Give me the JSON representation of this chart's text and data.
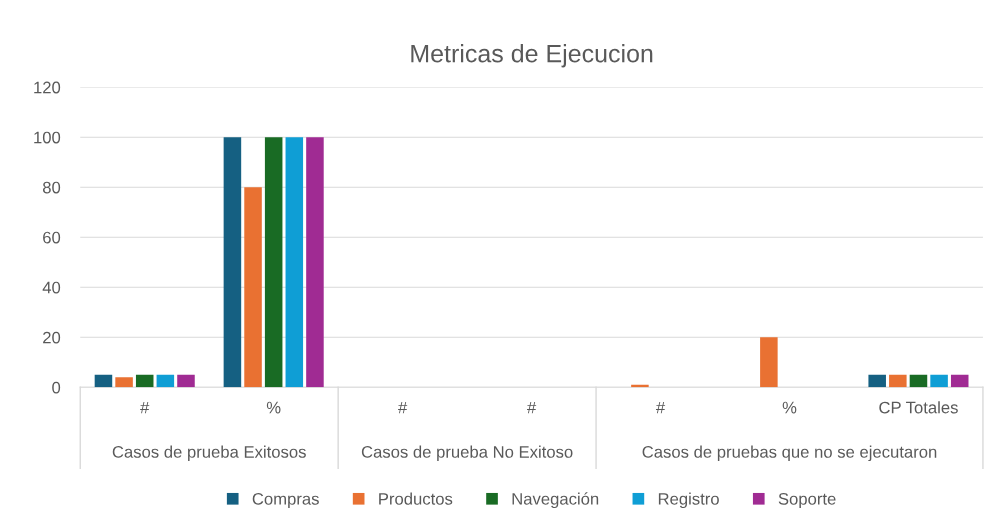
{
  "chart_data": {
    "type": "bar",
    "title": "Metricas de Ejecucion",
    "categories": [
      "#",
      "%",
      "#",
      "#",
      "#",
      "%",
      "CP Totales"
    ],
    "series": [
      {
        "name": "Compras",
        "color": "#156082",
        "values": [
          5,
          100,
          0,
          0,
          0,
          0,
          5
        ]
      },
      {
        "name": "Productos",
        "color": "#e97132",
        "values": [
          4,
          80,
          0,
          0,
          1,
          20,
          5
        ]
      },
      {
        "name": "Navegación",
        "color": "#196b24",
        "values": [
          5,
          100,
          0,
          0,
          0,
          0,
          5
        ]
      },
      {
        "name": "Registro",
        "color": "#0f9ed5",
        "values": [
          5,
          100,
          0,
          0,
          0,
          0,
          5
        ]
      },
      {
        "name": "Soporte",
        "color": "#a02b93",
        "values": [
          5,
          100,
          0,
          0,
          0,
          0,
          5
        ]
      }
    ],
    "annotations": [
      "Casos de prueba Exitosos",
      "Casos de prueba No Exitoso",
      "Casos de pruebas que no se ejecutaron"
    ],
    "ylim": [
      0,
      120
    ],
    "yticks": [
      0,
      20,
      40,
      60,
      80,
      100,
      120
    ],
    "grid": "y",
    "legend": "bottom"
  }
}
